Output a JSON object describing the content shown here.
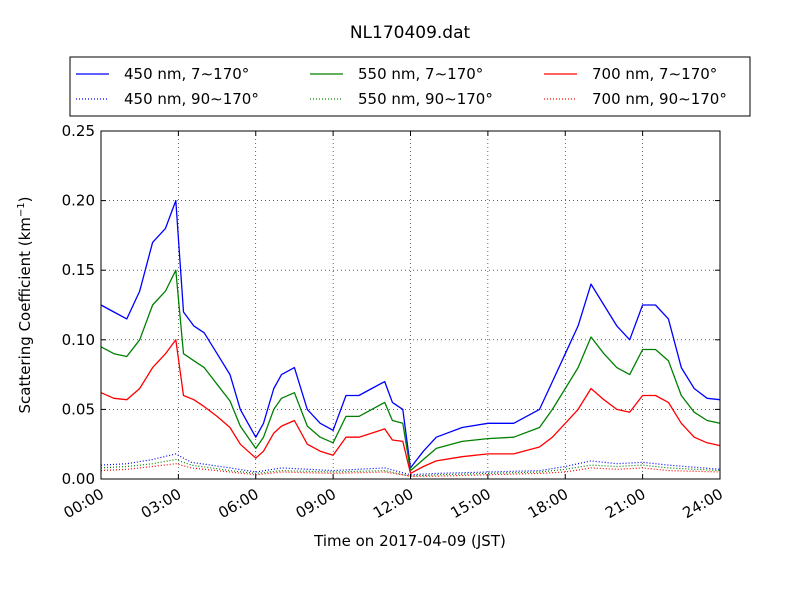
{
  "chart_data": {
    "type": "line",
    "title": "NL170409.dat",
    "xlabel": "Time on 2017-04-09 (JST)",
    "ylabel": "Scattering Coefficient (km",
    "ylabel_exp": "−1",
    "ylabel_close": ")",
    "xlim": [
      0,
      24
    ],
    "ylim": [
      0,
      0.25
    ],
    "x_ticks": [
      0,
      3,
      6,
      9,
      12,
      15,
      18,
      21,
      24
    ],
    "x_tick_labels": [
      "00:00",
      "03:00",
      "06:00",
      "09:00",
      "12:00",
      "15:00",
      "18:00",
      "21:00",
      "24:00"
    ],
    "y_ticks": [
      0,
      0.05,
      0.1,
      0.15,
      0.2,
      0.25
    ],
    "y_tick_labels": [
      "0.00",
      "0.05",
      "0.10",
      "0.15",
      "0.20",
      "0.25"
    ],
    "grid": true,
    "legend_position": "top, above plot",
    "series": [
      {
        "name": "450 nm, 7∼170°",
        "color": "#0000ff",
        "style": "solid",
        "x": [
          0,
          0.5,
          1,
          1.5,
          2,
          2.5,
          2.9,
          3.2,
          3.6,
          4,
          4.5,
          5,
          5.4,
          5.7,
          6,
          6.3,
          6.7,
          7,
          7.5,
          8,
          8.5,
          9,
          9.5,
          10,
          10.5,
          11,
          11.3,
          11.7,
          12,
          12.5,
          13,
          14,
          15,
          16,
          17,
          17.5,
          18,
          18.5,
          19,
          19.5,
          20,
          20.5,
          21,
          21.5,
          22,
          22.5,
          23,
          23.5,
          24
        ],
        "values": [
          0.125,
          0.12,
          0.115,
          0.135,
          0.17,
          0.18,
          0.2,
          0.12,
          0.11,
          0.105,
          0.09,
          0.075,
          0.05,
          0.04,
          0.03,
          0.04,
          0.065,
          0.075,
          0.08,
          0.05,
          0.04,
          0.035,
          0.06,
          0.06,
          0.065,
          0.07,
          0.055,
          0.05,
          0.008,
          0.02,
          0.03,
          0.037,
          0.04,
          0.04,
          0.05,
          0.07,
          0.09,
          0.11,
          0.14,
          0.125,
          0.11,
          0.1,
          0.125,
          0.125,
          0.115,
          0.08,
          0.065,
          0.058,
          0.057
        ]
      },
      {
        "name": "450 nm, 90∼170°",
        "color": "#0000ff",
        "style": "dotted",
        "x": [
          0,
          1,
          2,
          2.9,
          3.5,
          5,
          6,
          7,
          9,
          11,
          12,
          13,
          15,
          17,
          18,
          19,
          20,
          21,
          22,
          24
        ],
        "values": [
          0.01,
          0.011,
          0.014,
          0.018,
          0.012,
          0.008,
          0.005,
          0.008,
          0.006,
          0.008,
          0.003,
          0.004,
          0.005,
          0.006,
          0.009,
          0.013,
          0.011,
          0.012,
          0.01,
          0.007
        ]
      },
      {
        "name": "550 nm, 7∼170°",
        "color": "#008000",
        "style": "solid",
        "x": [
          0,
          0.5,
          1,
          1.5,
          2,
          2.5,
          2.9,
          3.2,
          3.6,
          4,
          4.5,
          5,
          5.4,
          5.7,
          6,
          6.3,
          6.7,
          7,
          7.5,
          8,
          8.5,
          9,
          9.5,
          10,
          10.5,
          11,
          11.3,
          11.7,
          12,
          12.5,
          13,
          14,
          15,
          16,
          17,
          17.5,
          18,
          18.5,
          19,
          19.5,
          20,
          20.5,
          21,
          21.5,
          22,
          22.5,
          23,
          23.5,
          24
        ],
        "values": [
          0.095,
          0.09,
          0.088,
          0.1,
          0.125,
          0.135,
          0.15,
          0.09,
          0.085,
          0.08,
          0.068,
          0.056,
          0.038,
          0.03,
          0.022,
          0.03,
          0.05,
          0.058,
          0.062,
          0.038,
          0.03,
          0.026,
          0.045,
          0.045,
          0.05,
          0.055,
          0.042,
          0.04,
          0.006,
          0.014,
          0.022,
          0.027,
          0.029,
          0.03,
          0.037,
          0.05,
          0.065,
          0.08,
          0.102,
          0.09,
          0.08,
          0.075,
          0.093,
          0.093,
          0.085,
          0.06,
          0.048,
          0.042,
          0.04
        ]
      },
      {
        "name": "550 nm, 90∼170°",
        "color": "#008000",
        "style": "dotted",
        "x": [
          0,
          1,
          2,
          2.9,
          3.5,
          5,
          6,
          7,
          9,
          11,
          12,
          13,
          15,
          17,
          18,
          19,
          20,
          21,
          22,
          24
        ],
        "values": [
          0.008,
          0.009,
          0.011,
          0.014,
          0.01,
          0.006,
          0.004,
          0.006,
          0.005,
          0.006,
          0.002,
          0.003,
          0.004,
          0.005,
          0.007,
          0.01,
          0.009,
          0.01,
          0.008,
          0.006
        ]
      },
      {
        "name": "700 nm, 7∼170°",
        "color": "#ff0000",
        "style": "solid",
        "x": [
          0,
          0.5,
          1,
          1.5,
          2,
          2.5,
          2.9,
          3.2,
          3.6,
          4,
          4.5,
          5,
          5.4,
          5.7,
          6,
          6.3,
          6.7,
          7,
          7.5,
          8,
          8.5,
          9,
          9.5,
          10,
          10.5,
          11,
          11.3,
          11.7,
          12,
          12.5,
          13,
          14,
          15,
          16,
          17,
          17.5,
          18,
          18.5,
          19,
          19.5,
          20,
          20.5,
          21,
          21.5,
          22,
          22.5,
          23,
          23.5,
          24
        ],
        "values": [
          0.062,
          0.058,
          0.057,
          0.065,
          0.08,
          0.09,
          0.1,
          0.06,
          0.057,
          0.052,
          0.045,
          0.037,
          0.025,
          0.02,
          0.015,
          0.02,
          0.033,
          0.038,
          0.042,
          0.025,
          0.02,
          0.017,
          0.03,
          0.03,
          0.033,
          0.036,
          0.028,
          0.027,
          0.004,
          0.009,
          0.013,
          0.016,
          0.018,
          0.018,
          0.023,
          0.03,
          0.04,
          0.05,
          0.065,
          0.057,
          0.05,
          0.048,
          0.06,
          0.06,
          0.055,
          0.04,
          0.03,
          0.026,
          0.024
        ]
      },
      {
        "name": "700 nm, 90∼170°",
        "color": "#ff0000",
        "style": "dotted",
        "x": [
          0,
          1,
          2,
          2.9,
          3.5,
          5,
          6,
          7,
          9,
          11,
          12,
          13,
          15,
          17,
          18,
          19,
          20,
          21,
          22,
          24
        ],
        "values": [
          0.006,
          0.007,
          0.009,
          0.011,
          0.008,
          0.005,
          0.003,
          0.005,
          0.004,
          0.005,
          0.002,
          0.002,
          0.003,
          0.004,
          0.005,
          0.008,
          0.007,
          0.008,
          0.006,
          0.005
        ]
      }
    ]
  }
}
